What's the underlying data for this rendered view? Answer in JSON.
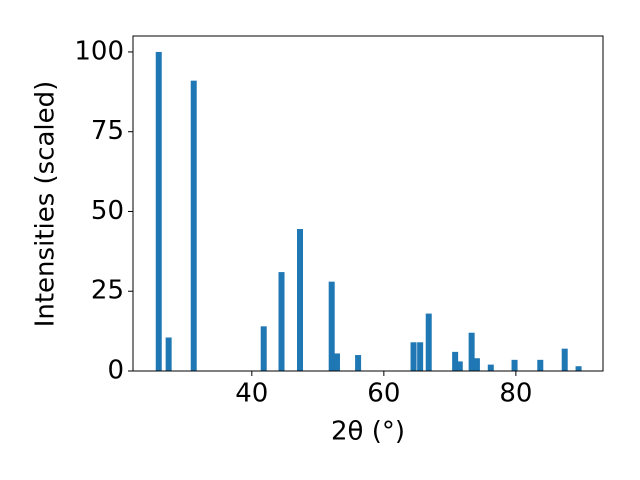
{
  "chart_data": {
    "type": "bar",
    "xlabel": "2θ (°)",
    "ylabel": "Intensities (scaled)",
    "color": "#1f77b4",
    "x": [
      25.9,
      27.4,
      31.2,
      41.8,
      44.5,
      47.3,
      52.1,
      52.9,
      56.1,
      64.5,
      65.5,
      66.8,
      70.8,
      71.5,
      73.3,
      74.1,
      76.2,
      79.8,
      83.7,
      87.4,
      89.5
    ],
    "values": [
      100,
      10.5,
      91,
      14,
      31,
      44.5,
      28,
      5.5,
      5,
      9,
      9,
      18,
      6,
      3,
      12,
      4,
      2,
      3.5,
      3.5,
      7,
      1.5
    ],
    "xlim": [
      22,
      93.2
    ],
    "ylim": [
      0,
      105
    ],
    "xticks": [
      40,
      60,
      80
    ],
    "yticks": [
      0,
      25,
      50,
      75,
      100
    ]
  }
}
